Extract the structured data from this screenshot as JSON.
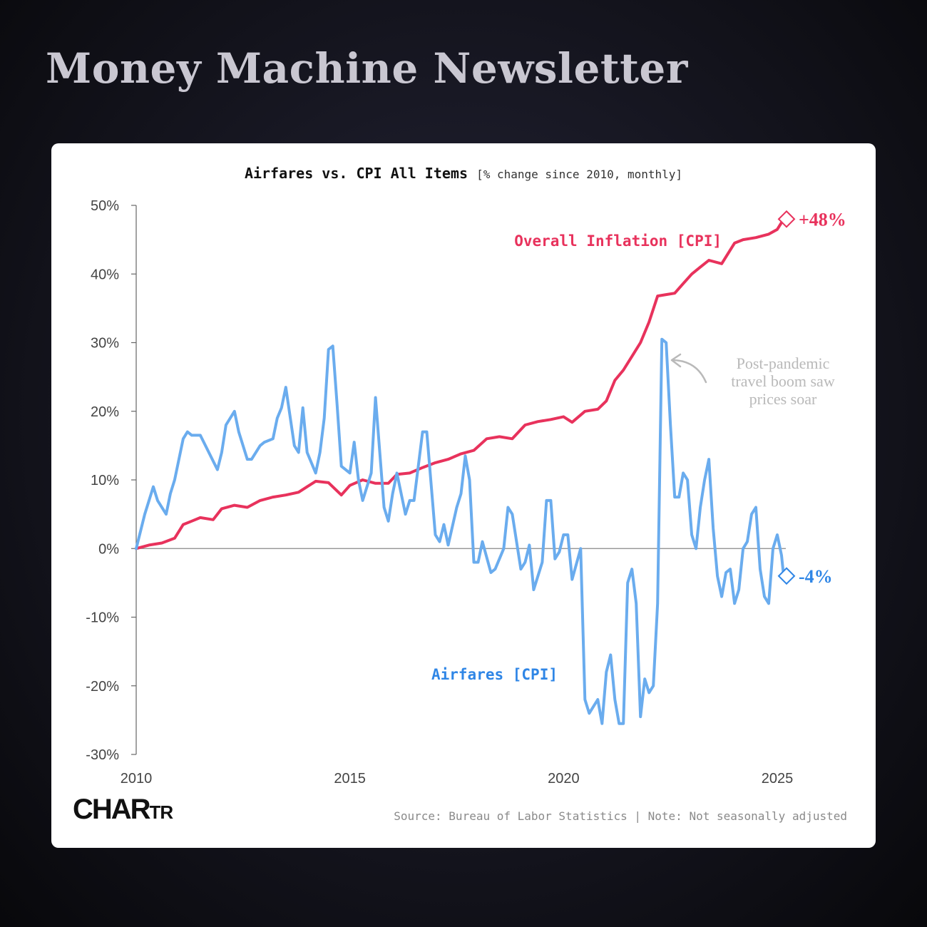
{
  "banner": "Money Machine Newsletter",
  "footer": {
    "logo_main": "CHAR",
    "logo_small": "TR",
    "source": "Source: Bureau of Labor Statistics | Note: Not seasonally adjusted"
  },
  "colors": {
    "cpi": "#e8325c",
    "airfares": "#6aacee",
    "airfares_label": "#2f86e6",
    "annotation": "#b9b9b9",
    "zero_line": "#888888"
  },
  "chart_data": {
    "type": "line",
    "title": "Airfares vs. CPI All Items",
    "subtitle": "[% change since 2010, monthly]",
    "xlim": [
      2010,
      2025.4
    ],
    "ylim": [
      -30,
      50
    ],
    "x_ticks": [
      2010,
      2015,
      2020,
      2025
    ],
    "y_ticks": [
      -30,
      -20,
      -10,
      0,
      10,
      20,
      30,
      40,
      50
    ],
    "y_tick_format": "%",
    "grid": false,
    "series": [
      {
        "name": "Overall Inflation [CPI]",
        "end_label": "+48%",
        "x": [
          2010,
          2010.3,
          2010.6,
          2010.9,
          2011.1,
          2011.3,
          2011.5,
          2011.8,
          2012.0,
          2012.3,
          2012.6,
          2012.9,
          2013.2,
          2013.5,
          2013.8,
          2014.0,
          2014.2,
          2014.5,
          2014.8,
          2015.0,
          2015.3,
          2015.6,
          2015.9,
          2016.1,
          2016.4,
          2016.7,
          2017.0,
          2017.3,
          2017.6,
          2017.9,
          2018.2,
          2018.5,
          2018.8,
          2019.1,
          2019.4,
          2019.7,
          2020.0,
          2020.2,
          2020.5,
          2020.8,
          2021.0,
          2021.2,
          2021.4,
          2021.6,
          2021.8,
          2022.0,
          2022.2,
          2022.4,
          2022.6,
          2022.8,
          2023.0,
          2023.2,
          2023.4,
          2023.7,
          2024.0,
          2024.2,
          2024.5,
          2024.8,
          2025.0,
          2025.15
        ],
        "y": [
          0,
          0.5,
          0.8,
          1.5,
          3.5,
          4.0,
          4.5,
          4.2,
          5.8,
          6.3,
          6.0,
          7.0,
          7.5,
          7.8,
          8.2,
          9.0,
          9.8,
          9.6,
          7.8,
          9.2,
          10.0,
          9.5,
          9.5,
          10.8,
          11.0,
          11.8,
          12.5,
          13.0,
          13.8,
          14.3,
          16.0,
          16.3,
          16.0,
          18.0,
          18.5,
          18.8,
          19.2,
          18.4,
          20.0,
          20.3,
          21.5,
          24.5,
          26.0,
          28.0,
          30.0,
          33.0,
          36.8,
          37.0,
          37.2,
          38.6,
          40.0,
          41.0,
          42.0,
          41.5,
          44.5,
          45.0,
          45.3,
          45.8,
          46.5,
          48.0
        ]
      },
      {
        "name": "Airfares [CPI]",
        "end_label": "-4%",
        "x": [
          2010,
          2010.2,
          2010.4,
          2010.5,
          2010.7,
          2010.8,
          2010.9,
          2011.1,
          2011.2,
          2011.3,
          2011.5,
          2011.7,
          2011.9,
          2012.0,
          2012.1,
          2012.3,
          2012.4,
          2012.6,
          2012.7,
          2012.9,
          2013.0,
          2013.2,
          2013.3,
          2013.4,
          2013.5,
          2013.7,
          2013.8,
          2013.9,
          2014.0,
          2014.2,
          2014.3,
          2014.4,
          2014.5,
          2014.6,
          2014.7,
          2014.8,
          2015.0,
          2015.1,
          2015.2,
          2015.3,
          2015.4,
          2015.5,
          2015.6,
          2015.8,
          2015.9,
          2016.0,
          2016.1,
          2016.3,
          2016.4,
          2016.5,
          2016.7,
          2016.8,
          2017.0,
          2017.1,
          2017.2,
          2017.3,
          2017.5,
          2017.6,
          2017.7,
          2017.8,
          2017.9,
          2018.0,
          2018.1,
          2018.3,
          2018.4,
          2018.6,
          2018.7,
          2018.8,
          2019.0,
          2019.1,
          2019.2,
          2019.3,
          2019.5,
          2019.6,
          2019.7,
          2019.8,
          2019.9,
          2020.0,
          2020.1,
          2020.2,
          2020.4,
          2020.5,
          2020.6,
          2020.8,
          2020.9,
          2021.0,
          2021.1,
          2021.2,
          2021.3,
          2021.4,
          2021.5,
          2021.6,
          2021.7,
          2021.8,
          2021.9,
          2022.0,
          2022.1,
          2022.2,
          2022.3,
          2022.4,
          2022.5,
          2022.6,
          2022.7,
          2022.8,
          2022.9,
          2023.0,
          2023.1,
          2023.2,
          2023.3,
          2023.4,
          2023.5,
          2023.6,
          2023.7,
          2023.8,
          2023.9,
          2024.0,
          2024.1,
          2024.2,
          2024.3,
          2024.4,
          2024.5,
          2024.6,
          2024.7,
          2024.8,
          2024.9,
          2025.0,
          2025.1,
          2025.15
        ],
        "y": [
          0,
          5.0,
          9.0,
          7.0,
          5.0,
          8.0,
          10.0,
          16.0,
          17.0,
          16.5,
          16.5,
          14.0,
          11.5,
          14.0,
          18.0,
          20.0,
          17.0,
          13.0,
          13.0,
          15.0,
          15.5,
          16.0,
          19.0,
          20.5,
          23.5,
          15.0,
          14.0,
          20.5,
          14.0,
          11.0,
          14.0,
          19.0,
          29.0,
          29.5,
          21.0,
          12.0,
          11.0,
          15.5,
          10.0,
          7.0,
          9.0,
          11.0,
          22.0,
          6.0,
          4.0,
          8.0,
          11.0,
          5.0,
          7.0,
          7.0,
          17.0,
          17.0,
          2.0,
          1.0,
          3.5,
          0.5,
          6.0,
          8.0,
          13.5,
          10.0,
          -2.0,
          -2.0,
          1.0,
          -3.5,
          -3.0,
          0.0,
          6.0,
          5.0,
          -3.0,
          -2.0,
          0.5,
          -6.0,
          -2.0,
          7.0,
          7.0,
          -1.5,
          -0.5,
          2.0,
          2.0,
          -4.5,
          0.0,
          -22.0,
          -24.0,
          -22.0,
          -25.5,
          -18.0,
          -15.5,
          -22.0,
          -25.5,
          -25.5,
          -5.0,
          -3.0,
          -8.0,
          -24.5,
          -19.0,
          -21.0,
          -20.0,
          -8.0,
          30.5,
          30.0,
          18.0,
          7.5,
          7.5,
          11.0,
          10.0,
          2.0,
          0.0,
          6.0,
          10.0,
          13.0,
          3.0,
          -4.0,
          -7.0,
          -3.5,
          -3.0,
          -8.0,
          -6.0,
          0.0,
          1.0,
          5.0,
          6.0,
          -3.0,
          -7.0,
          -8.0,
          0.0,
          2.0,
          -1.0,
          -4.0
        ]
      }
    ],
    "annotation": [
      "Post-pandemic",
      "travel boom saw",
      "prices soar"
    ]
  }
}
